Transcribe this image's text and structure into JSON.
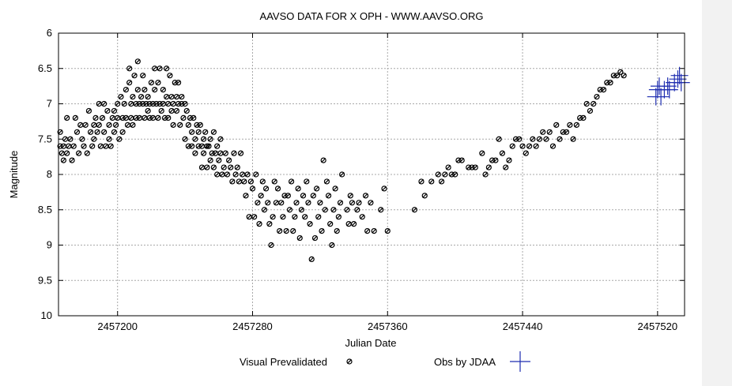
{
  "chart_data": {
    "type": "scatter",
    "title": "AAVSO DATA FOR X OPH - WWW.AAVSO.ORG",
    "xlabel": "Julian Date",
    "ylabel": "Magnitude",
    "xlim": [
      2457165,
      2457536
    ],
    "ylim": [
      10,
      6
    ],
    "y_inverted": true,
    "grid": true,
    "x_ticks": [
      2457200,
      2457280,
      2457360,
      2457440,
      2457520
    ],
    "x_tick_labels": [
      "2457200",
      "2457280",
      "2457360",
      "2457440",
      "2457520"
    ],
    "y_ticks": [
      6,
      6.5,
      7,
      7.5,
      8,
      8.5,
      9,
      9.5,
      10
    ],
    "y_tick_labels": [
      "6",
      "6.5",
      "7",
      "7.5",
      "8",
      "8.5",
      "9",
      "9.5",
      "10"
    ],
    "legend": {
      "placement": "bottom-center"
    },
    "series": [
      {
        "name": "Visual Prevalidated",
        "marker": "circle-with-slash",
        "color": "#000000",
        "points": [
          [
            2457166,
            7.4
          ],
          [
            2457166,
            7.6
          ],
          [
            2457167,
            7.7
          ],
          [
            2457168,
            7.6
          ],
          [
            2457168,
            7.8
          ],
          [
            2457169,
            7.5
          ],
          [
            2457170,
            7.7
          ],
          [
            2457170,
            7.2
          ],
          [
            2457171,
            7.6
          ],
          [
            2457172,
            7.5
          ],
          [
            2457173,
            7.8
          ],
          [
            2457174,
            7.6
          ],
          [
            2457175,
            7.2
          ],
          [
            2457176,
            7.4
          ],
          [
            2457177,
            7.7
          ],
          [
            2457178,
            7.3
          ],
          [
            2457179,
            7.5
          ],
          [
            2457180,
            7.6
          ],
          [
            2457181,
            7.3
          ],
          [
            2457182,
            7.7
          ],
          [
            2457183,
            7.1
          ],
          [
            2457184,
            7.4
          ],
          [
            2457185,
            7.6
          ],
          [
            2457186,
            7.3
          ],
          [
            2457186,
            7.5
          ],
          [
            2457187,
            7.2
          ],
          [
            2457188,
            7.4
          ],
          [
            2457189,
            7.0
          ],
          [
            2457189,
            7.3
          ],
          [
            2457190,
            7.6
          ],
          [
            2457191,
            7.2
          ],
          [
            2457192,
            7.0
          ],
          [
            2457192,
            7.4
          ],
          [
            2457193,
            7.6
          ],
          [
            2457194,
            7.1
          ],
          [
            2457195,
            7.3
          ],
          [
            2457195,
            7.5
          ],
          [
            2457196,
            7.6
          ],
          [
            2457197,
            7.2
          ],
          [
            2457198,
            7.1
          ],
          [
            2457198,
            7.4
          ],
          [
            2457199,
            7.3
          ],
          [
            2457200,
            7.0
          ],
          [
            2457200,
            7.2
          ],
          [
            2457201,
            7.5
          ],
          [
            2457202,
            6.9
          ],
          [
            2457203,
            7.2
          ],
          [
            2457203,
            7.4
          ],
          [
            2457204,
            7.0
          ],
          [
            2457205,
            6.8
          ],
          [
            2457205,
            7.2
          ],
          [
            2457206,
            7.3
          ],
          [
            2457207,
            6.5
          ],
          [
            2457207,
            6.7
          ],
          [
            2457208,
            7.0
          ],
          [
            2457208,
            7.2
          ],
          [
            2457209,
            6.9
          ],
          [
            2457209,
            7.3
          ],
          [
            2457210,
            6.6
          ],
          [
            2457211,
            7.0
          ],
          [
            2457211,
            7.2
          ],
          [
            2457212,
            6.8
          ],
          [
            2457212,
            6.4
          ],
          [
            2457213,
            7.0
          ],
          [
            2457213,
            7.2
          ],
          [
            2457214,
            6.9
          ],
          [
            2457215,
            6.6
          ],
          [
            2457215,
            7.0
          ],
          [
            2457216,
            7.2
          ],
          [
            2457216,
            6.8
          ],
          [
            2457217,
            7.0
          ],
          [
            2457218,
            7.1
          ],
          [
            2457218,
            6.9
          ],
          [
            2457219,
            7.0
          ],
          [
            2457219,
            7.2
          ],
          [
            2457220,
            6.7
          ],
          [
            2457221,
            7.0
          ],
          [
            2457221,
            7.2
          ],
          [
            2457222,
            6.5
          ],
          [
            2457222,
            6.8
          ],
          [
            2457223,
            7.0
          ],
          [
            2457224,
            6.7
          ],
          [
            2457224,
            7.2
          ],
          [
            2457225,
            6.5
          ],
          [
            2457225,
            7.0
          ],
          [
            2457226,
            7.1
          ],
          [
            2457227,
            6.8
          ],
          [
            2457227,
            7.0
          ],
          [
            2457228,
            7.2
          ],
          [
            2457229,
            6.5
          ],
          [
            2457229,
            6.9
          ],
          [
            2457230,
            7.0
          ],
          [
            2457230,
            7.2
          ],
          [
            2457231,
            6.6
          ],
          [
            2457232,
            6.9
          ],
          [
            2457232,
            7.1
          ],
          [
            2457233,
            7.0
          ],
          [
            2457233,
            7.3
          ],
          [
            2457234,
            6.7
          ],
          [
            2457235,
            6.9
          ],
          [
            2457235,
            7.1
          ],
          [
            2457236,
            6.7
          ],
          [
            2457236,
            7.0
          ],
          [
            2457237,
            7.3
          ],
          [
            2457238,
            7.0
          ],
          [
            2457238,
            6.9
          ],
          [
            2457239,
            7.2
          ],
          [
            2457240,
            7.0
          ],
          [
            2457240,
            7.5
          ],
          [
            2457241,
            7.1
          ],
          [
            2457242,
            7.3
          ],
          [
            2457242,
            7.6
          ],
          [
            2457243,
            7.2
          ],
          [
            2457244,
            7.4
          ],
          [
            2457244,
            7.6
          ],
          [
            2457245,
            7.2
          ],
          [
            2457246,
            7.5
          ],
          [
            2457246,
            7.7
          ],
          [
            2457247,
            7.3
          ],
          [
            2457248,
            7.6
          ],
          [
            2457248,
            7.4
          ],
          [
            2457249,
            7.3
          ],
          [
            2457250,
            7.6
          ],
          [
            2457250,
            7.9
          ],
          [
            2457251,
            7.5
          ],
          [
            2457251,
            7.7
          ],
          [
            2457252,
            7.4
          ],
          [
            2457253,
            7.6
          ],
          [
            2457253,
            7.9
          ],
          [
            2457254,
            7.6
          ],
          [
            2457255,
            7.8
          ],
          [
            2457255,
            7.5
          ],
          [
            2457256,
            7.7
          ],
          [
            2457257,
            7.4
          ],
          [
            2457257,
            7.9
          ],
          [
            2457258,
            7.7
          ],
          [
            2457259,
            7.6
          ],
          [
            2457259,
            8.0
          ],
          [
            2457260,
            7.8
          ],
          [
            2457261,
            7.5
          ],
          [
            2457261,
            7.7
          ],
          [
            2457262,
            8.0
          ],
          [
            2457263,
            7.9
          ],
          [
            2457264,
            7.7
          ],
          [
            2457265,
            8.0
          ],
          [
            2457266,
            7.8
          ],
          [
            2457267,
            7.9
          ],
          [
            2457268,
            8.1
          ],
          [
            2457269,
            7.7
          ],
          [
            2457270,
            8.0
          ],
          [
            2457271,
            7.9
          ],
          [
            2457272,
            8.1
          ],
          [
            2457273,
            7.7
          ],
          [
            2457274,
            8.0
          ],
          [
            2457275,
            8.1
          ],
          [
            2457276,
            8.3
          ],
          [
            2457277,
            8.0
          ],
          [
            2457278,
            8.6
          ],
          [
            2457279,
            8.1
          ],
          [
            2457280,
            8.2
          ],
          [
            2457281,
            8.6
          ],
          [
            2457282,
            8.0
          ],
          [
            2457283,
            8.4
          ],
          [
            2457284,
            8.7
          ],
          [
            2457285,
            8.3
          ],
          [
            2457286,
            8.1
          ],
          [
            2457287,
            8.5
          ],
          [
            2457288,
            8.2
          ],
          [
            2457289,
            8.4
          ],
          [
            2457290,
            8.7
          ],
          [
            2457291,
            9.0
          ],
          [
            2457292,
            8.6
          ],
          [
            2457293,
            8.1
          ],
          [
            2457294,
            8.4
          ],
          [
            2457295,
            8.2
          ],
          [
            2457296,
            8.8
          ],
          [
            2457297,
            8.4
          ],
          [
            2457298,
            8.6
          ],
          [
            2457299,
            8.3
          ],
          [
            2457300,
            8.8
          ],
          [
            2457301,
            8.3
          ],
          [
            2457302,
            8.5
          ],
          [
            2457303,
            8.1
          ],
          [
            2457304,
            8.8
          ],
          [
            2457305,
            8.6
          ],
          [
            2457306,
            8.4
          ],
          [
            2457307,
            8.2
          ],
          [
            2457308,
            8.9
          ],
          [
            2457309,
            8.5
          ],
          [
            2457310,
            8.3
          ],
          [
            2457311,
            8.6
          ],
          [
            2457312,
            8.1
          ],
          [
            2457313,
            8.4
          ],
          [
            2457314,
            8.7
          ],
          [
            2457315,
            9.2
          ],
          [
            2457316,
            8.3
          ],
          [
            2457317,
            8.9
          ],
          [
            2457318,
            8.2
          ],
          [
            2457319,
            8.6
          ],
          [
            2457320,
            8.4
          ],
          [
            2457321,
            8.8
          ],
          [
            2457322,
            7.8
          ],
          [
            2457323,
            8.5
          ],
          [
            2457324,
            8.1
          ],
          [
            2457325,
            8.3
          ],
          [
            2457326,
            8.7
          ],
          [
            2457327,
            9.0
          ],
          [
            2457328,
            8.5
          ],
          [
            2457329,
            8.2
          ],
          [
            2457330,
            8.8
          ],
          [
            2457331,
            8.6
          ],
          [
            2457332,
            8.4
          ],
          [
            2457333,
            8.0
          ],
          [
            2457336,
            8.5
          ],
          [
            2457337,
            8.7
          ],
          [
            2457338,
            8.3
          ],
          [
            2457339,
            8.4
          ],
          [
            2457340,
            8.7
          ],
          [
            2457342,
            8.5
          ],
          [
            2457343,
            8.4
          ],
          [
            2457345,
            8.6
          ],
          [
            2457347,
            8.3
          ],
          [
            2457348,
            8.8
          ],
          [
            2457350,
            8.4
          ],
          [
            2457352,
            8.8
          ],
          [
            2457356,
            8.5
          ],
          [
            2457358,
            8.2
          ],
          [
            2457360,
            8.8
          ],
          [
            2457376,
            8.5
          ],
          [
            2457380,
            8.1
          ],
          [
            2457382,
            8.3
          ],
          [
            2457386,
            8.1
          ],
          [
            2457390,
            8.0
          ],
          [
            2457392,
            8.1
          ],
          [
            2457394,
            8.0
          ],
          [
            2457396,
            7.9
          ],
          [
            2457398,
            8.0
          ],
          [
            2457400,
            8.0
          ],
          [
            2457402,
            7.8
          ],
          [
            2457404,
            7.8
          ],
          [
            2457408,
            7.9
          ],
          [
            2457410,
            7.9
          ],
          [
            2457412,
            7.9
          ],
          [
            2457416,
            7.7
          ],
          [
            2457418,
            8.0
          ],
          [
            2457420,
            7.9
          ],
          [
            2457422,
            7.8
          ],
          [
            2457424,
            7.8
          ],
          [
            2457426,
            7.5
          ],
          [
            2457428,
            7.7
          ],
          [
            2457430,
            7.9
          ],
          [
            2457432,
            7.8
          ],
          [
            2457434,
            7.6
          ],
          [
            2457436,
            7.5
          ],
          [
            2457438,
            7.5
          ],
          [
            2457440,
            7.6
          ],
          [
            2457442,
            7.7
          ],
          [
            2457444,
            7.6
          ],
          [
            2457446,
            7.5
          ],
          [
            2457448,
            7.6
          ],
          [
            2457450,
            7.5
          ],
          [
            2457452,
            7.4
          ],
          [
            2457454,
            7.5
          ],
          [
            2457456,
            7.4
          ],
          [
            2457458,
            7.6
          ],
          [
            2457460,
            7.3
          ],
          [
            2457462,
            7.5
          ],
          [
            2457464,
            7.4
          ],
          [
            2457466,
            7.4
          ],
          [
            2457468,
            7.3
          ],
          [
            2457470,
            7.5
          ],
          [
            2457472,
            7.3
          ],
          [
            2457474,
            7.2
          ],
          [
            2457476,
            7.2
          ],
          [
            2457478,
            7.0
          ],
          [
            2457480,
            7.1
          ],
          [
            2457482,
            7.0
          ],
          [
            2457484,
            6.9
          ],
          [
            2457486,
            6.8
          ],
          [
            2457488,
            6.8
          ],
          [
            2457490,
            6.7
          ],
          [
            2457492,
            6.7
          ],
          [
            2457494,
            6.6
          ],
          [
            2457496,
            6.6
          ],
          [
            2457498,
            6.55
          ],
          [
            2457500,
            6.6
          ]
        ]
      },
      {
        "name": "Obs by JDAA",
        "marker": "plus",
        "color": "#1e2db0",
        "points": [
          [
            2457519,
            6.9
          ],
          [
            2457520,
            6.8
          ],
          [
            2457521,
            6.75
          ],
          [
            2457522,
            6.9
          ],
          [
            2457524,
            6.8
          ],
          [
            2457526,
            6.75
          ],
          [
            2457527,
            6.8
          ],
          [
            2457530,
            6.7
          ],
          [
            2457532,
            6.65
          ],
          [
            2457533,
            6.6
          ],
          [
            2457534,
            6.7
          ]
        ]
      }
    ]
  }
}
